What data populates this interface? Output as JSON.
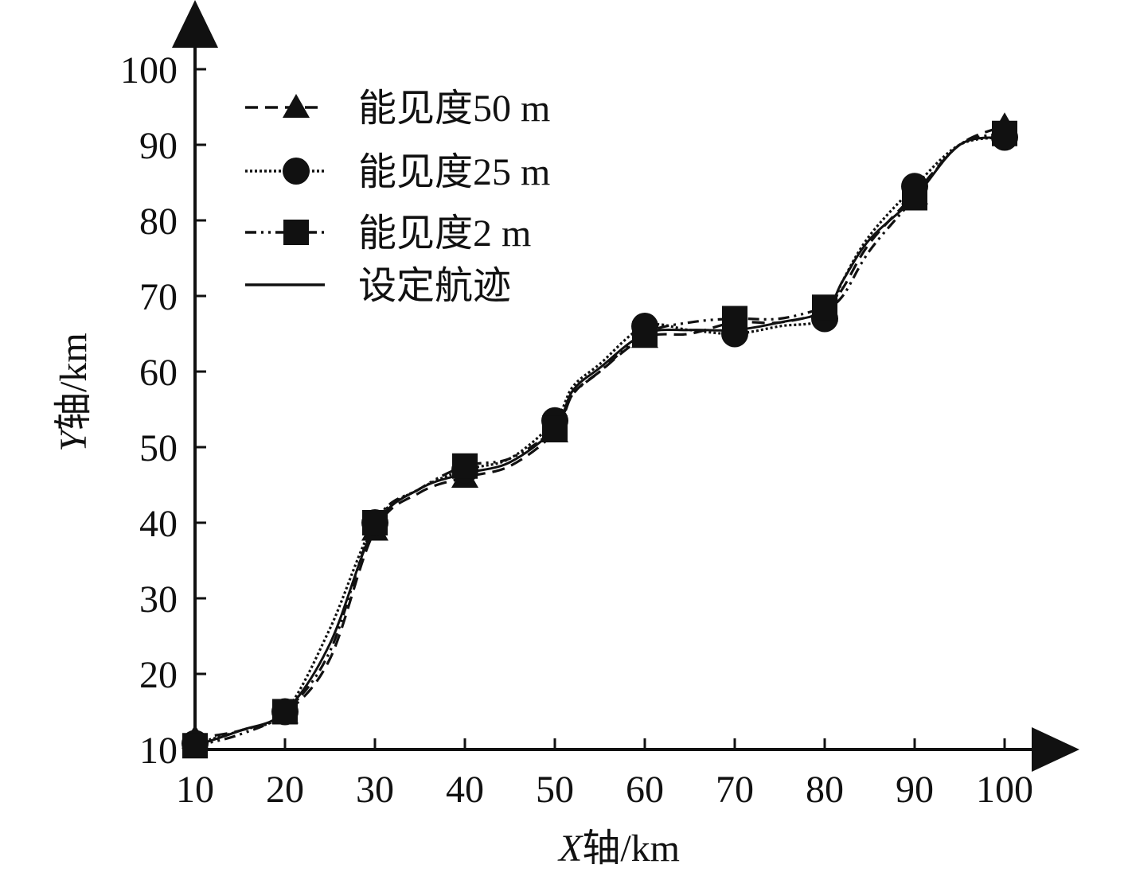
{
  "chart_data": {
    "type": "line",
    "xlabel": {
      "var": "X",
      "rest": "轴/km"
    },
    "ylabel": {
      "var": "Y",
      "rest": "轴/km"
    },
    "xlim": [
      10,
      100
    ],
    "ylim": [
      10,
      100
    ],
    "xticks": [
      "10",
      "20",
      "30",
      "40",
      "50",
      "60",
      "70",
      "80",
      "90",
      "100"
    ],
    "yticks": [
      "10",
      "20",
      "30",
      "40",
      "50",
      "60",
      "70",
      "80",
      "90",
      "100"
    ],
    "grid": false,
    "legend_position": "top-left",
    "series": [
      {
        "name": "能见度50 m",
        "line_style": "dashed",
        "marker": "triangle",
        "color": "#111111",
        "x": [
          10,
          15,
          20,
          25,
          30,
          35,
          40,
          45,
          50,
          52,
          55,
          60,
          65,
          70,
          75,
          80,
          82,
          85,
          90,
          95,
          100
        ],
        "y": [
          11.5,
          12.5,
          14.8,
          22,
          39,
          44,
          46,
          47.5,
          52,
          57,
          60,
          64.5,
          65,
          66.5,
          66.5,
          68,
          71,
          77,
          83.5,
          90,
          92.5
        ]
      },
      {
        "name": "能见度25 m",
        "line_style": "dotted",
        "marker": "circle",
        "color": "#111111",
        "x": [
          10,
          15,
          20,
          25,
          30,
          35,
          40,
          45,
          50,
          52,
          55,
          60,
          65,
          70,
          75,
          80,
          82,
          85,
          90,
          95,
          100
        ],
        "y": [
          10.8,
          12.5,
          15,
          26,
          40,
          44.5,
          47,
          48.5,
          53.5,
          58,
          61,
          66,
          65.5,
          65,
          66,
          67,
          72,
          78,
          84.5,
          90,
          91
        ]
      },
      {
        "name": "能见度2 m",
        "line_style": "dash-dot-dot",
        "marker": "square",
        "color": "#111111",
        "x": [
          10,
          15,
          20,
          25,
          30,
          35,
          40,
          45,
          50,
          52,
          55,
          60,
          65,
          70,
          75,
          80,
          82,
          85,
          90,
          95,
          100
        ],
        "y": [
          10.5,
          12,
          15,
          23,
          40,
          44.5,
          47.5,
          48.5,
          52.5,
          57,
          60,
          65,
          66.5,
          67,
          67,
          68.5,
          70,
          76,
          83,
          90,
          91.5
        ]
      },
      {
        "name": "设定航迹",
        "line_style": "solid",
        "marker": "none",
        "color": "#111111",
        "x": [
          10,
          15,
          20,
          25,
          30,
          35,
          40,
          45,
          50,
          52,
          55,
          60,
          65,
          70,
          75,
          80,
          82,
          85,
          90,
          95,
          100
        ],
        "y": [
          10.5,
          12.5,
          15,
          24,
          39.5,
          44.5,
          46.5,
          48,
          52.5,
          57.5,
          60.5,
          65,
          65.5,
          65.5,
          66.5,
          68,
          72,
          77.5,
          83,
          90,
          91
        ]
      }
    ]
  }
}
